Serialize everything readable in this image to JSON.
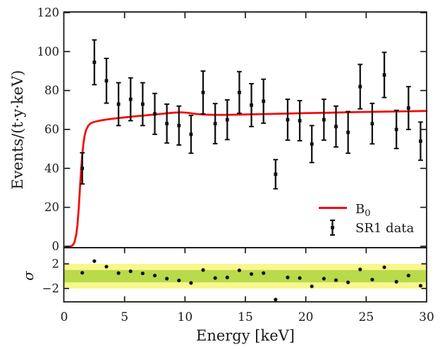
{
  "figure": {
    "background": "#ffffff",
    "frame_color": "#1a1a1a",
    "text_color": "#1a1a1a"
  },
  "chart_data": {
    "type": "line+errorbar with residual subplot",
    "title": "",
    "xlabel": "Energy [keV]",
    "xlim": [
      0,
      30
    ],
    "x_ticks": [
      0,
      5,
      10,
      15,
      20,
      25,
      30
    ],
    "main_panel": {
      "ylabel": "Events/(t·y·keV)",
      "ylim": [
        0,
        120
      ],
      "y_ticks": [
        0,
        20,
        40,
        60,
        80,
        100,
        120
      ],
      "grid": false,
      "b0_line": {
        "name": "B0 model",
        "color": "#f20c0c",
        "x": [
          0.2,
          0.5,
          0.7,
          0.85,
          1.0,
          1.1,
          1.2,
          1.3,
          1.4,
          1.5,
          1.6,
          1.7,
          1.8,
          2.0,
          2.2,
          2.5,
          3.0,
          3.5,
          4.0,
          5.0,
          6.0,
          7.0,
          8.0,
          9.0,
          9.7,
          10.3,
          11.0,
          11.7,
          12.5,
          13.5,
          15.0,
          16.5,
          18.0,
          20.0,
          22.0,
          24.0,
          26.0,
          28.0,
          30.0
        ],
        "y": [
          -0.3,
          -0.2,
          0.5,
          2,
          6,
          11,
          19,
          29,
          39,
          47,
          53,
          57,
          59.5,
          62,
          63.2,
          63.9,
          64.6,
          65.1,
          65.5,
          66.2,
          66.8,
          67.4,
          68.0,
          68.6,
          68.8,
          68.5,
          67.9,
          67.6,
          67.5,
          67.5,
          67.7,
          67.9,
          68.1,
          68.4,
          68.6,
          68.9,
          69.1,
          69.3,
          69.5
        ]
      },
      "sr1_data": {
        "name": "SR1 data",
        "color": "#111111",
        "x": [
          1.5,
          2.5,
          3.5,
          4.5,
          5.5,
          6.5,
          7.5,
          8.5,
          9.5,
          10.5,
          11.5,
          12.5,
          13.5,
          14.5,
          15.5,
          16.5,
          17.5,
          18.5,
          19.5,
          20.5,
          21.5,
          22.5,
          23.5,
          24.5,
          25.5,
          26.5,
          27.5,
          28.5,
          29.5
        ],
        "y": [
          40,
          94.5,
          85,
          73,
          75.5,
          73,
          68,
          63,
          62,
          57.5,
          79,
          63,
          65,
          79,
          72.5,
          74.5,
          37,
          65,
          64.5,
          52.5,
          65,
          61.5,
          58.5,
          82,
          63,
          88,
          60,
          71,
          54
        ],
        "yerr": [
          8,
          11.5,
          11.5,
          11,
          11,
          11,
          10.5,
          10,
          10,
          9.7,
          11,
          10.3,
          10.2,
          10.7,
          11,
          11.3,
          7.5,
          10.5,
          10.3,
          9.5,
          10.5,
          10.5,
          10.7,
          11.4,
          10.4,
          11.6,
          9.8,
          11,
          9.8
        ]
      }
    },
    "residual_panel": {
      "ylabel": "σ",
      "ylim": [
        -4.2,
        4.6
      ],
      "y_ticks": [
        {
          "value": 2,
          "label": "2"
        },
        {
          "value": -2,
          "label": "−2"
        }
      ],
      "bands": [
        {
          "name": "two-sigma-band",
          "sigma_range": [
            -2,
            2
          ],
          "color": "#f7f78c"
        },
        {
          "name": "one-sigma-band",
          "sigma_range": [
            -1,
            1
          ],
          "color": "#b9da4b"
        }
      ],
      "points": {
        "x": [
          1.5,
          2.5,
          3.5,
          4.5,
          5.5,
          6.5,
          7.5,
          8.5,
          9.5,
          10.5,
          11.5,
          12.5,
          13.5,
          14.5,
          15.5,
          16.5,
          17.5,
          18.5,
          19.5,
          20.5,
          21.5,
          22.5,
          23.5,
          24.5,
          25.5,
          26.5,
          27.5,
          28.5,
          29.5
        ],
        "sigma": [
          0.55,
          2.45,
          1.55,
          0.5,
          0.8,
          0.45,
          0.1,
          -0.4,
          -0.7,
          -1.1,
          1.0,
          -0.3,
          -0.2,
          0.95,
          0.35,
          0.5,
          -3.8,
          -0.2,
          -0.3,
          -1.65,
          -0.4,
          -0.65,
          -1.0,
          1.1,
          -0.55,
          1.45,
          -0.9,
          0.1,
          -1.55
        ],
        "color": "#111111"
      }
    },
    "legend": {
      "position": "lower right of main panel",
      "entries": [
        {
          "label": "B",
          "label_sub": "0",
          "swatch": "red-line",
          "color": "#f20c0c"
        },
        {
          "label": "SR1 data",
          "swatch": "errorbar",
          "color": "#111111"
        }
      ]
    }
  }
}
